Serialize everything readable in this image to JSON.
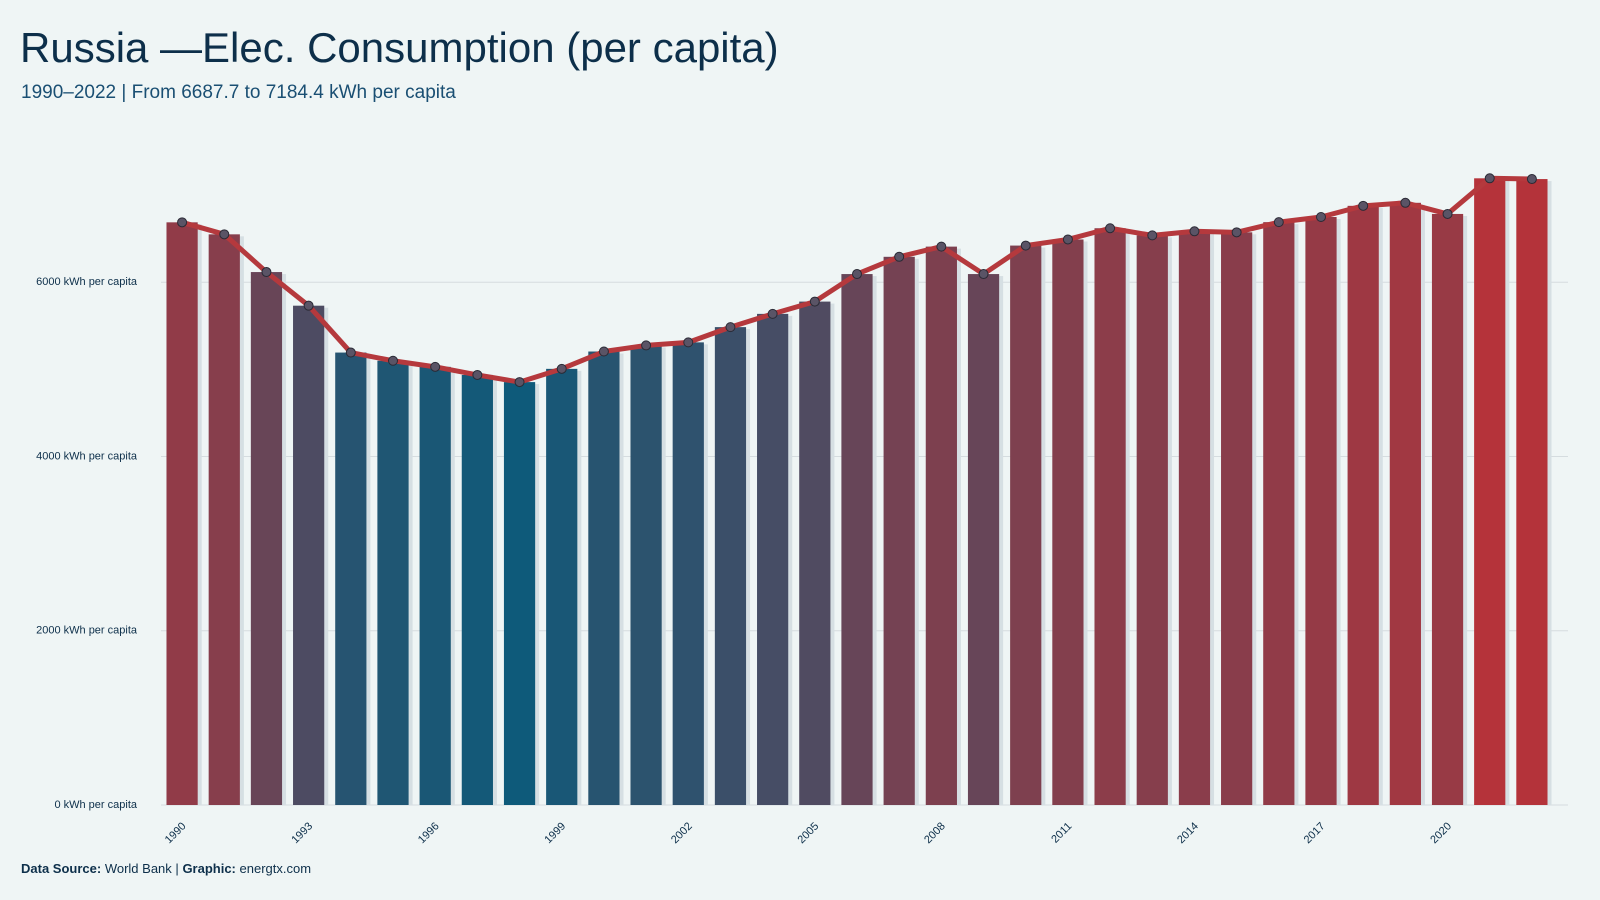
{
  "chart_data": {
    "type": "bar_line",
    "title": "Russia —Elec. Consumption (per capita)",
    "subtitle": "1990–2022 | From 6687.7 to 7184.4 kWh per capita",
    "categories": [
      "1990",
      null,
      null,
      "1993",
      null,
      null,
      "1996",
      null,
      null,
      "1999",
      null,
      null,
      "2002",
      null,
      null,
      "2005",
      null,
      null,
      "2008",
      null,
      null,
      "2011",
      null,
      null,
      "2014",
      null,
      null,
      "2017",
      null,
      null,
      "2020",
      null,
      null
    ],
    "values": [
      6687.7,
      6550,
      6117,
      5731,
      5193,
      5099,
      5029,
      4936,
      4854,
      5006,
      5205,
      5275,
      5310,
      5485,
      5637,
      5778,
      6094,
      6292,
      6409,
      6094,
      6421,
      6491,
      6620,
      6538,
      6585,
      6573,
      6690,
      6749,
      6877,
      6912,
      6784,
      7193,
      7184.4
    ],
    "color_low": "#0e5a7a",
    "color_high": "#b5333a",
    "line_color": "#b5393d",
    "marker_color": "#5a5466",
    "ylim": [
      0,
      8000
    ],
    "yticks": [
      {
        "value": 0,
        "label": "0 kWh per capita"
      },
      {
        "value": 2000,
        "label": "2000 kWh per capita"
      },
      {
        "value": 4000,
        "label": "4000 kWh per capita"
      },
      {
        "value": 6000,
        "label": "6000 kWh per capita"
      }
    ],
    "grid": true,
    "footer": {
      "source_label": "Data Source:",
      "source": "World Bank",
      "separator": "|",
      "graphic_label": "Graphic:",
      "graphic": "energtx.com"
    }
  }
}
